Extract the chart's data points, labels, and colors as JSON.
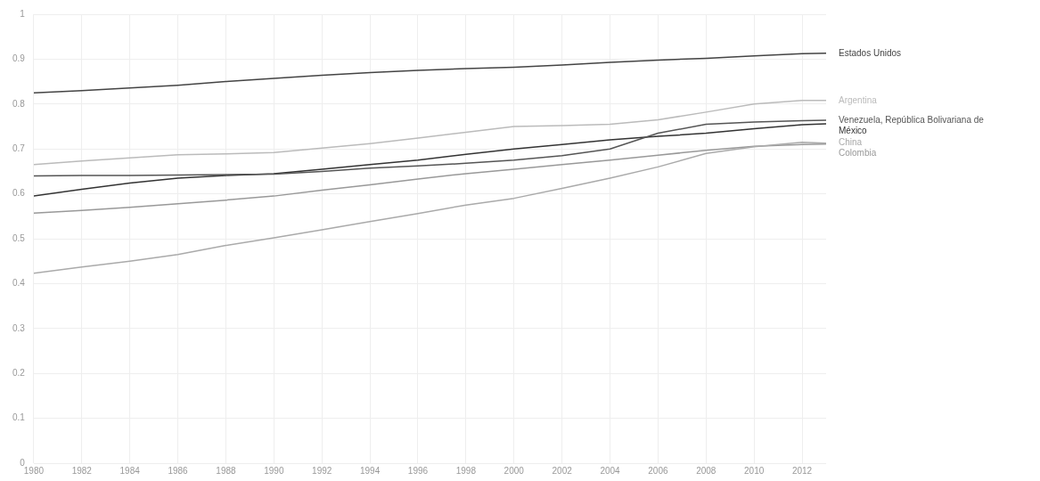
{
  "chart_data": {
    "type": "line",
    "x": [
      1980,
      1982,
      1984,
      1986,
      1988,
      1990,
      1992,
      1994,
      1996,
      1998,
      2000,
      2002,
      2004,
      2006,
      2008,
      2010,
      2012,
      2013
    ],
    "xlim": [
      1980,
      2013
    ],
    "xticks": [
      1980,
      1982,
      1984,
      1986,
      1988,
      1990,
      1992,
      1994,
      1996,
      1998,
      2000,
      2002,
      2004,
      2006,
      2008,
      2010,
      2012
    ],
    "ylim": [
      0,
      1
    ],
    "yticks": [
      0,
      0.1,
      0.2,
      0.3,
      0.4,
      0.5,
      0.6,
      0.7,
      0.8,
      0.9,
      1
    ],
    "grid": true,
    "legend": false,
    "marker": "none",
    "line_style": "solid",
    "series": [
      {
        "name": "Estados Unidos",
        "color": "#444444",
        "values": [
          0.825,
          0.83,
          0.836,
          0.842,
          0.85,
          0.857,
          0.864,
          0.87,
          0.875,
          0.879,
          0.882,
          0.887,
          0.893,
          0.898,
          0.902,
          0.907,
          0.912,
          0.913
        ]
      },
      {
        "name": "Argentina",
        "color": "#bbbbbb",
        "values": [
          0.665,
          0.673,
          0.68,
          0.687,
          0.689,
          0.692,
          0.702,
          0.712,
          0.724,
          0.737,
          0.75,
          0.752,
          0.755,
          0.765,
          0.782,
          0.8,
          0.808,
          0.808
        ]
      },
      {
        "name": "Venezuela, República Bolivariana de",
        "color": "#555555",
        "values": [
          0.64,
          0.641,
          0.641,
          0.642,
          0.643,
          0.644,
          0.65,
          0.657,
          0.662,
          0.668,
          0.675,
          0.685,
          0.7,
          0.735,
          0.755,
          0.76,
          0.763,
          0.764
        ]
      },
      {
        "name": "México",
        "color": "#333333",
        "values": [
          0.595,
          0.61,
          0.624,
          0.635,
          0.641,
          0.645,
          0.655,
          0.665,
          0.675,
          0.688,
          0.7,
          0.71,
          0.72,
          0.728,
          0.735,
          0.745,
          0.754,
          0.756
        ]
      },
      {
        "name": "China",
        "color": "#aaaaaa",
        "values": [
          0.423,
          0.437,
          0.45,
          0.465,
          0.485,
          0.502,
          0.52,
          0.538,
          0.556,
          0.575,
          0.59,
          0.612,
          0.635,
          0.66,
          0.69,
          0.705,
          0.715,
          0.713
        ]
      },
      {
        "name": "Colombia",
        "color": "#999999",
        "values": [
          0.557,
          0.563,
          0.57,
          0.578,
          0.586,
          0.595,
          0.608,
          0.62,
          0.633,
          0.645,
          0.655,
          0.665,
          0.675,
          0.686,
          0.697,
          0.706,
          0.71,
          0.711
        ]
      }
    ]
  }
}
